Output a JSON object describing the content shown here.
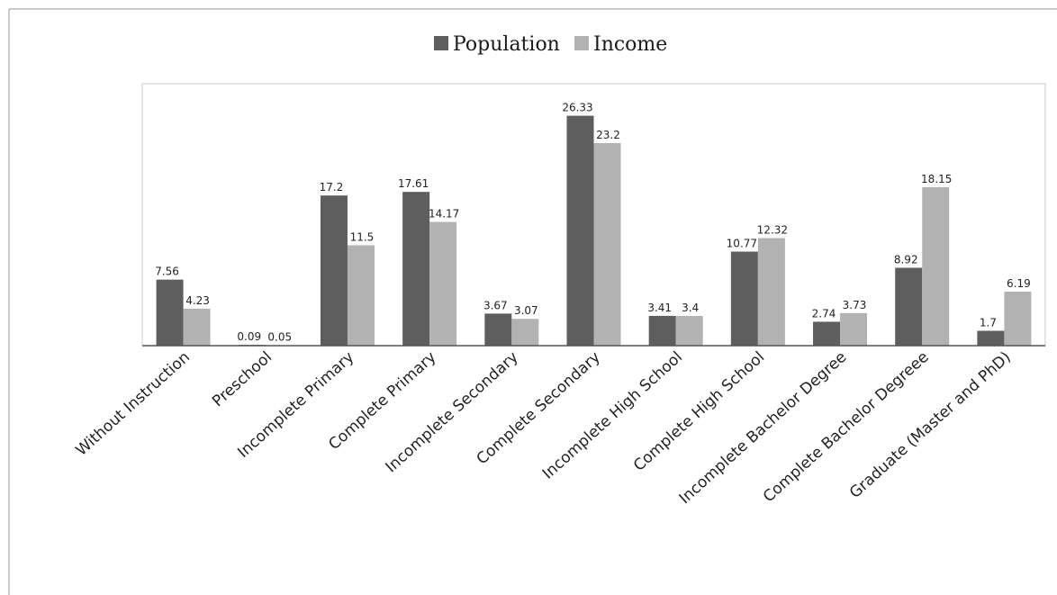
{
  "chart_data": {
    "type": "bar",
    "title": "",
    "xlabel": "",
    "ylabel": "",
    "ylim": [
      0,
      29
    ],
    "grid": false,
    "legend_position": "top",
    "categories": [
      "Without Instruction",
      "Preschool",
      "Incomplete Primary",
      "Complete Primary",
      "Incomplete Secondary",
      "Complete Secondary",
      "Incomplete High School",
      "Complete High School",
      "Incomplete Bachelor Degree",
      "Complete Bachelor Degreee",
      "Graduate (Master and PhD)"
    ],
    "series": [
      {
        "name": "Population",
        "color": "#5e5e5e",
        "values": [
          7.56,
          0.09,
          17.2,
          17.61,
          3.67,
          26.33,
          3.41,
          10.77,
          2.74,
          8.92,
          1.7
        ],
        "labels": [
          "7.56",
          "0.09",
          "17.2",
          "17.61",
          "3.67",
          "26.33",
          "3.41",
          "10.77",
          "2.74",
          "8.92",
          "1.7"
        ]
      },
      {
        "name": "Income",
        "color": "#b2b2b2",
        "values": [
          4.23,
          0.05,
          11.5,
          14.17,
          3.07,
          23.2,
          3.4,
          12.32,
          3.73,
          18.15,
          6.19
        ],
        "labels": [
          "4.23",
          "0.05",
          "11.5",
          "14.17",
          "3.07",
          "23.2",
          "3.4",
          "12.32",
          "3.73",
          "18.15",
          "6.19"
        ]
      }
    ]
  }
}
